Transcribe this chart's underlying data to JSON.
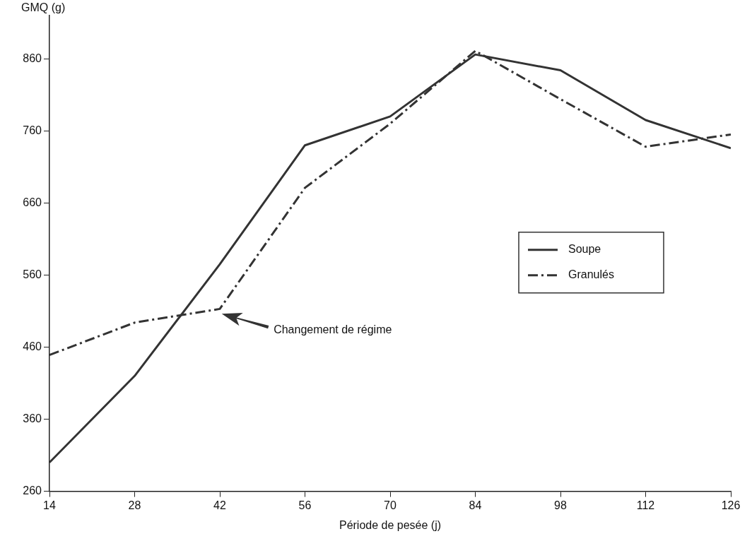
{
  "chart_data": {
    "type": "line",
    "xlabel": "Période de pesée (j)",
    "ylabel": "GMQ (g)",
    "x": [
      14,
      28,
      42,
      56,
      70,
      84,
      98,
      112,
      126
    ],
    "series": [
      {
        "name": "Soupe",
        "color": "#333333",
        "line_style": "solid",
        "values": [
          300,
          420,
          575,
          740,
          780,
          866,
          844,
          775,
          736
        ]
      },
      {
        "name": "Granulés",
        "color": "#333333",
        "line_style": "dashed",
        "values": [
          449,
          494,
          513,
          681,
          770,
          871,
          804,
          738,
          755
        ]
      }
    ],
    "xlim": [
      14,
      126
    ],
    "xticks": [
      14,
      28,
      42,
      56,
      70,
      84,
      98,
      112,
      126
    ],
    "ylim": [
      260,
      920
    ],
    "yticks": [
      260,
      360,
      460,
      560,
      660,
      760,
      860
    ],
    "annotations": [
      "Changement de régime"
    ],
    "grid": false,
    "legend": "right",
    "marker": "none"
  }
}
